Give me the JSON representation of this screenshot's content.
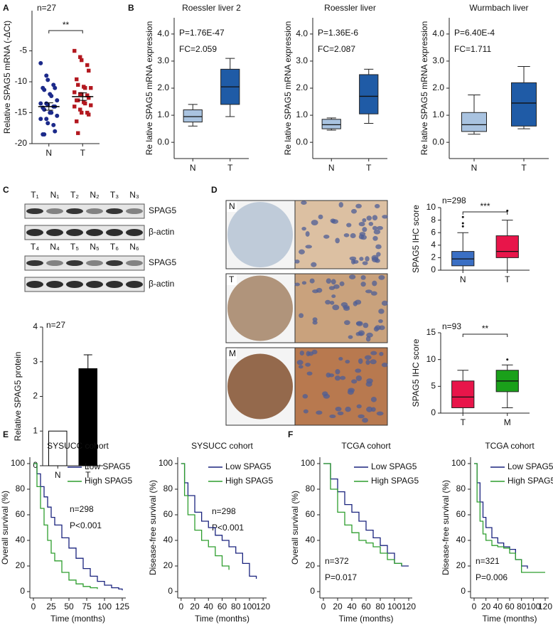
{
  "panel_labels": [
    "A",
    "B",
    "C",
    "D",
    "E",
    "F"
  ],
  "chart_data": [
    {
      "type": "strip",
      "annotations": [
        "n=27"
      ],
      "significance": "**",
      "ylabel": "Relative SPAG5 mRNA (-ΔCt)",
      "categories": [
        "N",
        "T"
      ],
      "colors": [
        "#1c2a8a",
        "#b3181f"
      ],
      "points": [
        [
          -7,
          -9,
          -9.7,
          -10.5,
          -11,
          -11,
          -11.3,
          -12,
          -12.3,
          -13,
          -13.5,
          -13.5,
          -13.7,
          -14,
          -14,
          -14.2,
          -14.5,
          -15,
          -15,
          -15.5,
          -16,
          -16,
          -16.7,
          -17,
          -18,
          -18.5,
          -18.5
        ],
        [
          -5,
          -6,
          -6.5,
          -7.3,
          -8.2,
          -9.6,
          -10.5,
          -10.8,
          -11,
          -11,
          -11.7,
          -12,
          -12,
          -12.2,
          -12.6,
          -13,
          -13,
          -13.3,
          -13.5,
          -13.8,
          -14,
          -14.5,
          -15,
          -15,
          -15.3,
          -16.4,
          -18.3
        ]
      ],
      "mean": [
        -14.0,
        -12.4
      ],
      "sem": [
        0.6,
        0.6
      ],
      "ylim": [
        -20,
        1.5
      ],
      "yticks": [
        -20,
        -15,
        -10,
        -5
      ]
    },
    {
      "type": "box",
      "title": "Roessler liver 2",
      "annotations": [
        "P=1.76E-47",
        "FC=2.059"
      ],
      "ylabel": "Re lative SPAG5 mRNA expression",
      "categories": [
        "N",
        "T"
      ],
      "colors": [
        "#a9c3e0",
        "#1f5ba6"
      ],
      "boxes": [
        {
          "whislo": 0.6,
          "q1": 0.75,
          "med": 0.95,
          "q3": 1.2,
          "whishi": 1.4,
          "outliers": []
        },
        {
          "whislo": 0.95,
          "q1": 1.4,
          "med": 2.05,
          "q3": 2.7,
          "whishi": 3.1,
          "outliers": []
        }
      ],
      "ylim": [
        -0.6,
        4.6
      ],
      "yticks": [
        {
          "value": 0,
          "label": "0.0"
        },
        {
          "value": 1,
          "label": "1.0"
        },
        {
          "value": 2,
          "label": "2.0"
        },
        {
          "value": 3,
          "label": "3.0"
        },
        {
          "value": 4,
          "label": "4.0"
        }
      ]
    },
    {
      "type": "box",
      "title": "Roessler liver",
      "annotations": [
        "P=1.36E-6",
        "FC=2.087"
      ],
      "ylabel": "Re lative SPAG5 mRNA expression",
      "categories": [
        "N",
        "T"
      ],
      "colors": [
        "#a9c3e0",
        "#1f5ba6"
      ],
      "boxes": [
        {
          "whislo": 0.45,
          "q1": 0.5,
          "med": 0.65,
          "q3": 0.85,
          "whishi": 0.9,
          "outliers": []
        },
        {
          "whislo": 0.7,
          "q1": 1.05,
          "med": 1.7,
          "q3": 2.5,
          "whishi": 2.7,
          "outliers": []
        }
      ],
      "ylim": [
        -0.6,
        4.6
      ],
      "yticks": [
        {
          "value": 0,
          "label": "0.0"
        },
        {
          "value": 1,
          "label": "1.0"
        },
        {
          "value": 2,
          "label": "2.0"
        },
        {
          "value": 3,
          "label": "3.0"
        },
        {
          "value": 4,
          "label": "4.0"
        }
      ]
    },
    {
      "type": "box",
      "title": "Wurmbach liver",
      "annotations": [
        "P=6.40E-4",
        "FC=1.711"
      ],
      "ylabel": "Re lative SPAG5 mRNA expression",
      "categories": [
        "N",
        "T"
      ],
      "colors": [
        "#a9c3e0",
        "#1f5ba6"
      ],
      "boxes": [
        {
          "whislo": 0.3,
          "q1": 0.4,
          "med": 0.65,
          "q3": 1.1,
          "whishi": 1.75,
          "outliers": []
        },
        {
          "whislo": 0.5,
          "q1": 0.6,
          "med": 1.45,
          "q3": 2.2,
          "whishi": 2.8,
          "outliers": []
        }
      ],
      "ylim": [
        -0.6,
        4.6
      ],
      "yticks": [
        {
          "value": 0,
          "label": "0.0"
        },
        {
          "value": 1,
          "label": "1.0"
        },
        {
          "value": 2,
          "label": "2.0"
        },
        {
          "value": 3,
          "label": "3.0"
        },
        {
          "value": 4,
          "label": "4.0"
        }
      ]
    },
    {
      "type": "blot",
      "groups": [
        {
          "lanes": [
            "T₁",
            "N₁",
            "T₂",
            "N₂",
            "T₃",
            "N₃"
          ],
          "rows": [
            "SPAG5",
            "β-actin"
          ]
        },
        {
          "lanes": [
            "T₄",
            "N₄",
            "T₅",
            "N₅",
            "T₆",
            "N₆"
          ],
          "rows": [
            "SPAG5",
            "β-actin"
          ]
        }
      ]
    },
    {
      "type": "bar",
      "annotations": [
        "n=27"
      ],
      "ylabel": "Relative SPAG5 protein",
      "categories": [
        "N",
        "T"
      ],
      "values": [
        1,
        2.8
      ],
      "errors": [
        null,
        0.4
      ],
      "colors": [
        "#ffffff",
        "#000000"
      ],
      "ylim": [
        0,
        4
      ],
      "yticks": [
        0,
        1,
        2,
        3,
        4
      ]
    },
    {
      "type": "ihc",
      "labels": [
        "N",
        "T",
        "M"
      ]
    },
    {
      "type": "box",
      "annotations": [
        "n=298"
      ],
      "significance": "***",
      "ylabel": "SPAG5 IHC score",
      "categories": [
        "N",
        "T"
      ],
      "colors": [
        "#3a6fc4",
        "#e8154a"
      ],
      "boxes": [
        {
          "whislo": 0,
          "q1": 0.7,
          "med": 1.8,
          "q3": 3,
          "whishi": 6,
          "outliers": [
            7,
            7.5,
            8.5
          ]
        },
        {
          "whislo": 0,
          "q1": 2,
          "med": 3,
          "q3": 5.5,
          "whishi": 8,
          "outliers": [
            9.5
          ]
        }
      ],
      "ylim": [
        0,
        10
      ],
      "yticks": [
        0,
        2,
        4,
        6,
        8,
        10
      ]
    },
    {
      "type": "box",
      "annotations": [
        "n=93"
      ],
      "significance": "**",
      "ylabel": "SPAG5 IHC score",
      "categories": [
        "T",
        "M"
      ],
      "colors": [
        "#e8154a",
        "#1aa01a"
      ],
      "boxes": [
        {
          "whislo": 0,
          "q1": 1,
          "med": 3,
          "q3": 6,
          "whishi": 8,
          "outliers": []
        },
        {
          "whislo": 1,
          "q1": 4,
          "med": 6,
          "q3": 8,
          "whishi": 9,
          "outliers": [
            10
          ]
        }
      ],
      "ylim": [
        0,
        15
      ],
      "yticks": [
        0,
        5,
        10,
        15
      ]
    },
    {
      "type": "km",
      "title": "SYSUCC cohort",
      "ylabel": "Overall survival (%)",
      "xlabel": "Time (months)",
      "annotations": [
        "n=298",
        "P<0.001"
      ],
      "legend": "upper right",
      "x": [
        0,
        5,
        10,
        15,
        20,
        25,
        30,
        40,
        50,
        60,
        70,
        80,
        90,
        100,
        110,
        120,
        125
      ],
      "series": [
        {
          "name": "Low SPAG5",
          "color": "#1a237e",
          "values": [
            100,
            92,
            82,
            74,
            66,
            58,
            52,
            42,
            34,
            26,
            18,
            12,
            8,
            5,
            3,
            2,
            1
          ]
        },
        {
          "name": "High SPAG5",
          "color": "#2e9e2e",
          "values": [
            100,
            82,
            65,
            52,
            40,
            30,
            24,
            15,
            9,
            6,
            4,
            3,
            2,
            null,
            null,
            null,
            null
          ]
        }
      ],
      "xlim": [
        -5,
        130
      ],
      "xticks": [
        0,
        25,
        50,
        75,
        100,
        125
      ],
      "ylim": [
        -5,
        105
      ],
      "yticks": [
        0,
        20,
        40,
        60,
        80,
        100
      ]
    },
    {
      "type": "km",
      "title": "SYSUCC cohort",
      "ylabel": "Disease-free survival (%)",
      "xlabel": "Time (months)",
      "annotations": [
        "n=298",
        "P<0.001"
      ],
      "legend": "upper right",
      "x": [
        0,
        5,
        10,
        20,
        30,
        40,
        50,
        60,
        70,
        80,
        90,
        100,
        110
      ],
      "series": [
        {
          "name": "Low SPAG5",
          "color": "#1a237e",
          "values": [
            100,
            85,
            75,
            62,
            55,
            50,
            44,
            40,
            35,
            30,
            22,
            12,
            10
          ]
        },
        {
          "name": "High SPAG5",
          "color": "#2e9e2e",
          "values": [
            100,
            75,
            60,
            48,
            40,
            35,
            28,
            20,
            17,
            null,
            null,
            null,
            null
          ]
        }
      ],
      "xlim": [
        -5,
        125
      ],
      "xticks": [
        0,
        20,
        40,
        60,
        80,
        100,
        120
      ],
      "ylim": [
        -5,
        105
      ],
      "yticks": [
        0,
        20,
        40,
        60,
        80,
        100
      ]
    },
    {
      "type": "km",
      "title": "TCGA cohort",
      "ylabel": "Overall survival (%)",
      "xlabel": "Time (months)",
      "annotations": [
        "n=372",
        "P=0.017"
      ],
      "legend": "upper right",
      "x": [
        0,
        10,
        20,
        30,
        40,
        50,
        60,
        70,
        80,
        90,
        100,
        110,
        120
      ],
      "series": [
        {
          "name": "Low SPAG5",
          "color": "#1a237e",
          "values": [
            100,
            88,
            78,
            68,
            62,
            55,
            48,
            42,
            36,
            30,
            22,
            20,
            20
          ]
        },
        {
          "name": "High SPAG5",
          "color": "#2e9e2e",
          "values": [
            100,
            80,
            62,
            52,
            46,
            40,
            38,
            35,
            30,
            25,
            22,
            20,
            null
          ]
        }
      ],
      "xlim": [
        -5,
        125
      ],
      "xticks": [
        0,
        20,
        40,
        60,
        80,
        100,
        120
      ],
      "ylim": [
        -5,
        105
      ],
      "yticks": [
        0,
        20,
        40,
        60,
        80,
        100
      ]
    },
    {
      "type": "km",
      "title": "TCGA cohort",
      "ylabel": "Disease-free survival (%)",
      "xlabel": "Time (months)",
      "annotations": [
        "n=321",
        "P=0.006"
      ],
      "legend": "upper right",
      "x": [
        0,
        5,
        10,
        15,
        20,
        30,
        40,
        50,
        60,
        70,
        80,
        90,
        100,
        110,
        120
      ],
      "series": [
        {
          "name": "Low SPAG5",
          "color": "#1a237e",
          "values": [
            100,
            85,
            70,
            58,
            50,
            42,
            38,
            35,
            33,
            25,
            20,
            18,
            null,
            null,
            null
          ]
        },
        {
          "name": "High SPAG5",
          "color": "#2e9e2e",
          "values": [
            100,
            70,
            55,
            45,
            40,
            36,
            35,
            34,
            30,
            25,
            15,
            15,
            15,
            15,
            15
          ]
        }
      ],
      "xlim": [
        -6,
        126
      ],
      "xticks": [
        0,
        20,
        40,
        60,
        80,
        100,
        120
      ],
      "ylim": [
        -5,
        105
      ],
      "yticks": [
        0,
        20,
        40,
        60,
        80,
        100
      ]
    }
  ]
}
